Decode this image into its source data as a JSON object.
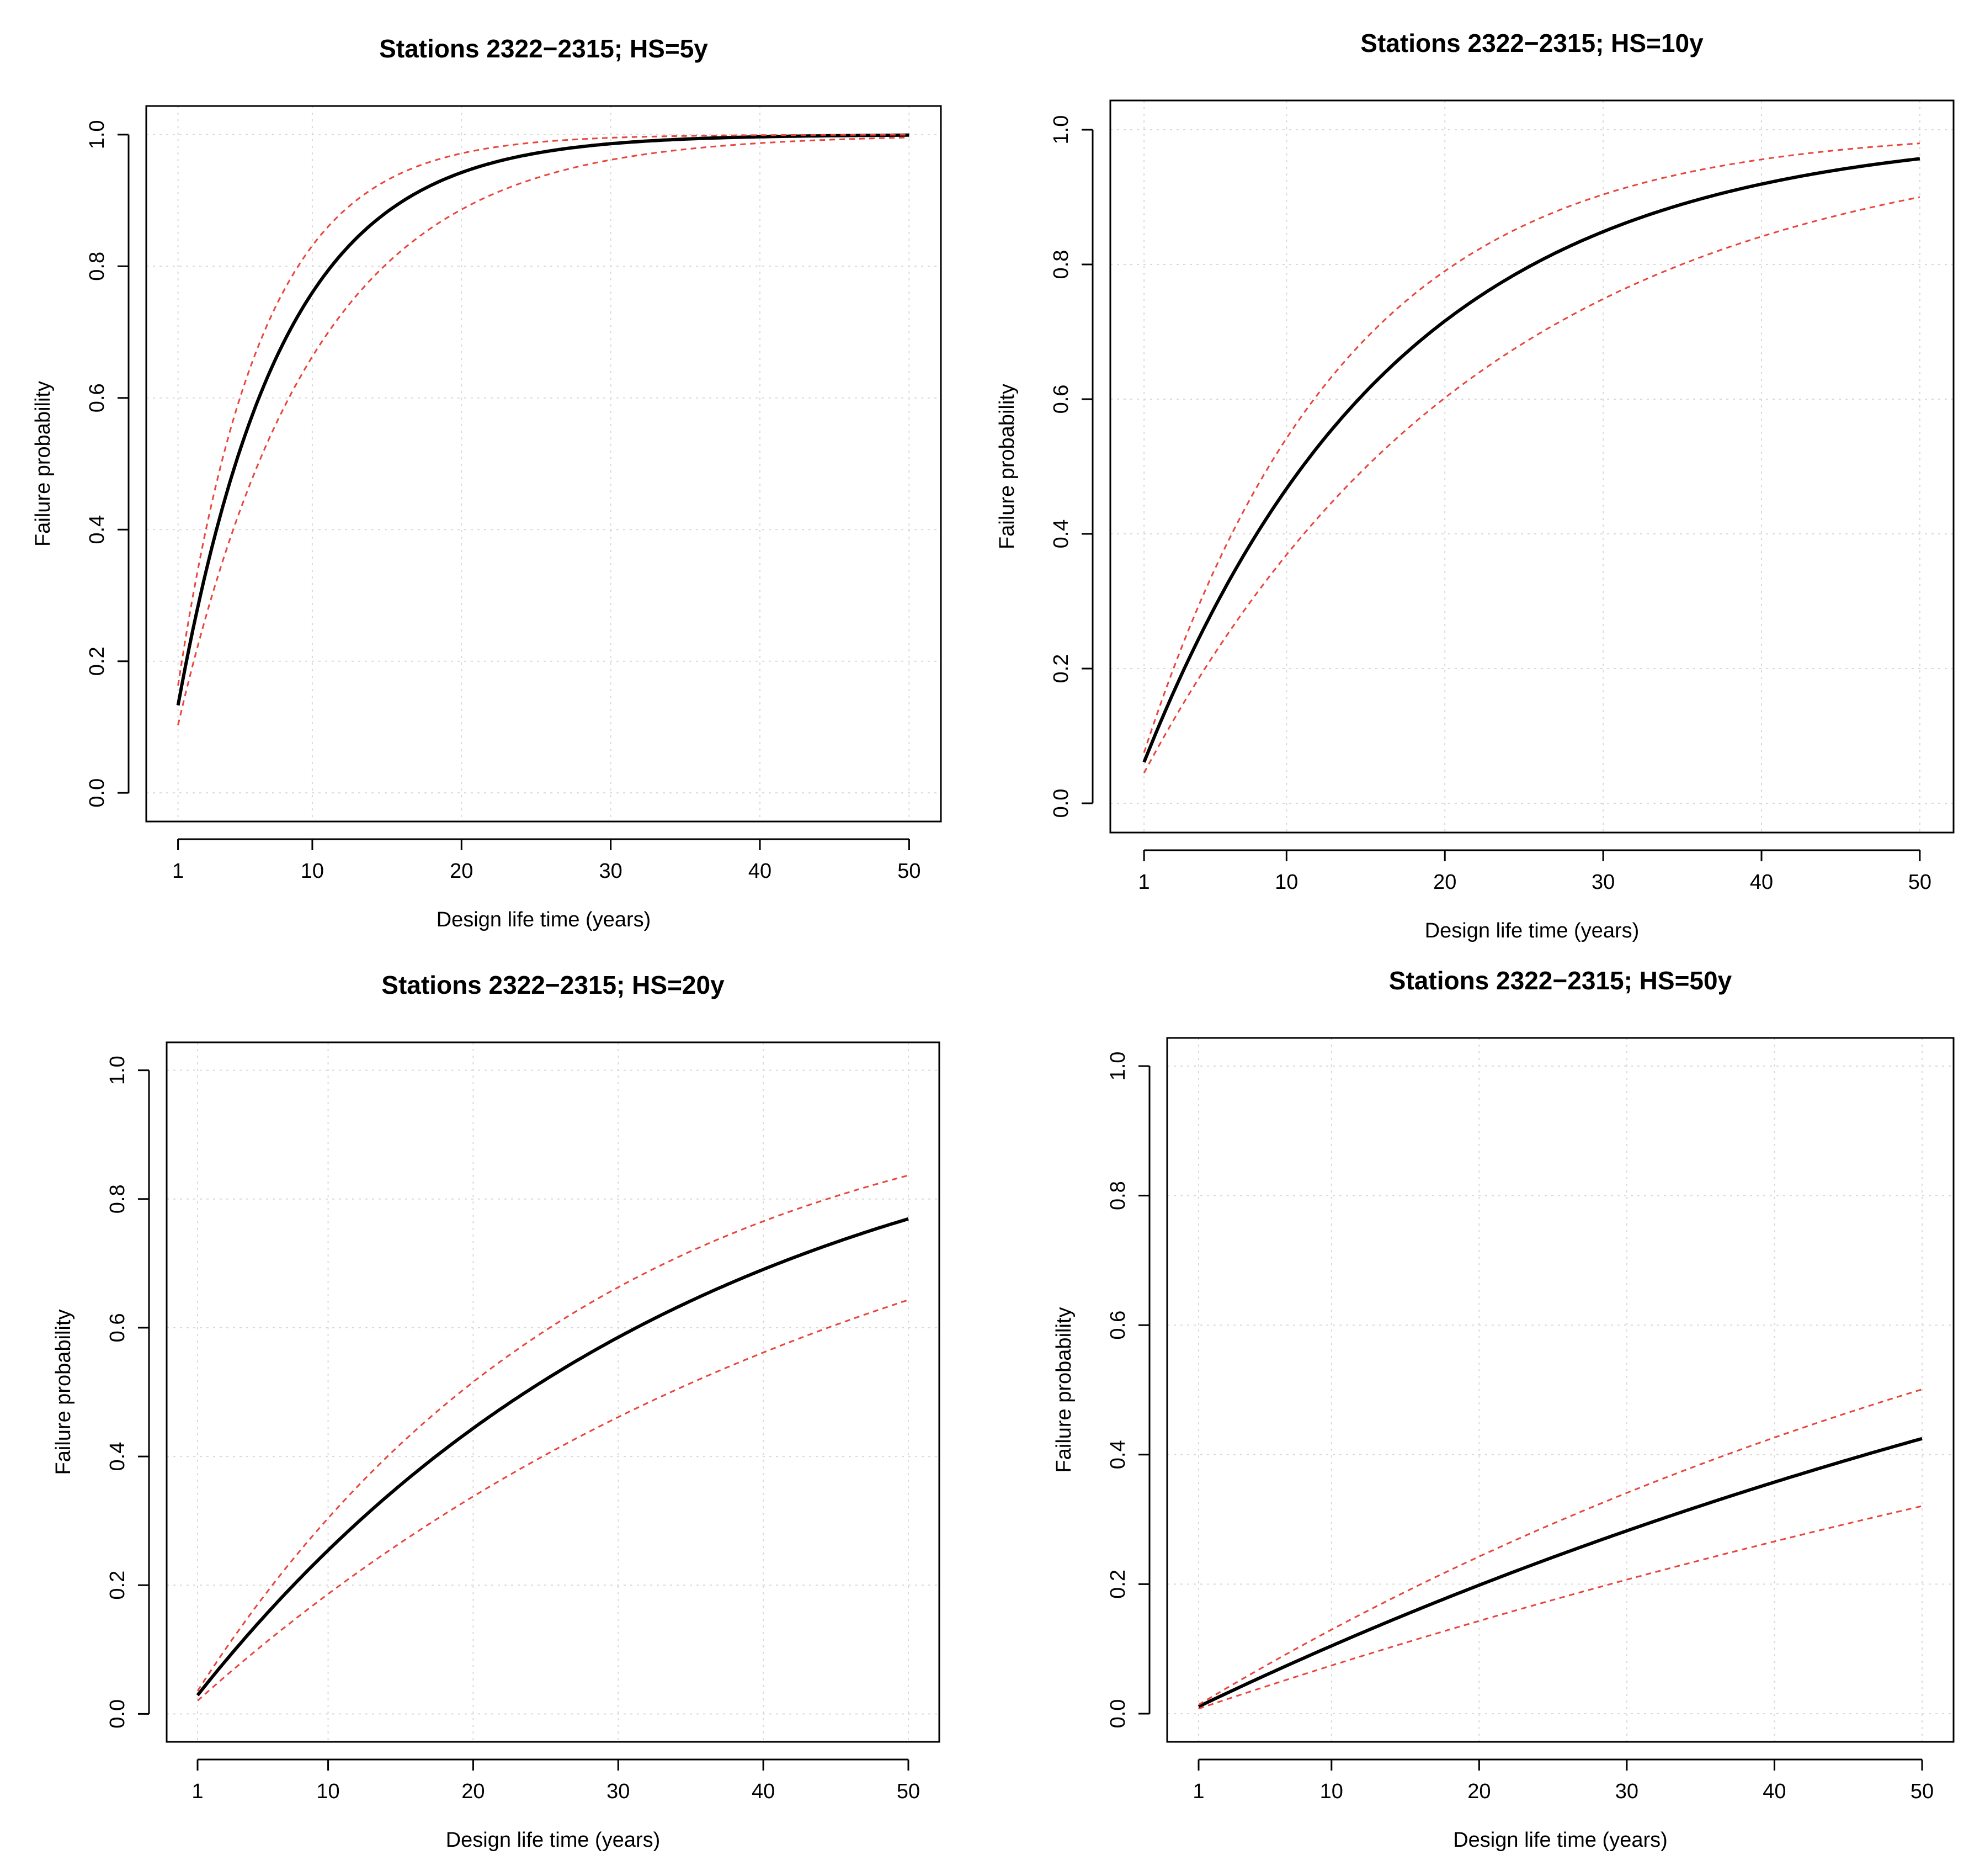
{
  "chart_data": [
    {
      "type": "line",
      "title": "Stations 2322−2315; HS=5y",
      "xlabel": "Design life time (years)",
      "ylabel": "Failure probability",
      "xlim": [
        1,
        50
      ],
      "ylim": [
        0,
        1
      ],
      "xticks": [
        1,
        10,
        20,
        30,
        40,
        50
      ],
      "xtick_labels": [
        "1",
        "10",
        "20",
        "30",
        "40",
        "50"
      ],
      "yticks": [
        0,
        0.2,
        0.4,
        0.6,
        0.8,
        1.0
      ],
      "ytick_labels": [
        "0.0",
        "0.2",
        "0.4",
        "0.6",
        "0.8",
        "1.0"
      ],
      "grid": true,
      "series": [
        {
          "name": "estimate",
          "color": "#000000",
          "style": "solid",
          "annual_probability": 0.133
        },
        {
          "name": "upper bound",
          "color": "#e8463d",
          "style": "dashed",
          "annual_probability": 0.163
        },
        {
          "name": "lower bound",
          "color": "#e8463d",
          "style": "dashed",
          "annual_probability": 0.103
        }
      ]
    },
    {
      "type": "line",
      "title": "Stations 2322−2315; HS=10y",
      "xlabel": "Design life time (years)",
      "ylabel": "Failure probability",
      "xlim": [
        1,
        50
      ],
      "ylim": [
        0,
        1
      ],
      "xticks": [
        1,
        10,
        20,
        30,
        40,
        50
      ],
      "xtick_labels": [
        "1",
        "10",
        "20",
        "30",
        "40",
        "50"
      ],
      "yticks": [
        0,
        0.2,
        0.4,
        0.6,
        0.8,
        1.0
      ],
      "ytick_labels": [
        "0.0",
        "0.2",
        "0.4",
        "0.6",
        "0.8",
        "1.0"
      ],
      "grid": true,
      "series": [
        {
          "name": "estimate",
          "color": "#000000",
          "style": "solid",
          "annual_probability": 0.061
        },
        {
          "name": "upper bound",
          "color": "#e8463d",
          "style": "dashed",
          "annual_probability": 0.0751
        },
        {
          "name": "lower bound",
          "color": "#e8463d",
          "style": "dashed",
          "annual_probability": 0.045
        }
      ]
    },
    {
      "type": "line",
      "title": "Stations 2322−2315; HS=20y",
      "xlabel": "Design life time (years)",
      "ylabel": "Failure probability",
      "xlim": [
        1,
        50
      ],
      "ylim": [
        0,
        1
      ],
      "xticks": [
        1,
        10,
        20,
        30,
        40,
        50
      ],
      "xtick_labels": [
        "1",
        "10",
        "20",
        "30",
        "40",
        "50"
      ],
      "yticks": [
        0,
        0.2,
        0.4,
        0.6,
        0.8,
        1.0
      ],
      "ytick_labels": [
        "0.0",
        "0.2",
        "0.4",
        "0.6",
        "0.8",
        "1.0"
      ],
      "grid": true,
      "series": [
        {
          "name": "estimate",
          "color": "#000000",
          "style": "solid",
          "annual_probability": 0.0289
        },
        {
          "name": "upper bound",
          "color": "#e8463d",
          "style": "dashed",
          "annual_probability": 0.0356
        },
        {
          "name": "lower bound",
          "color": "#e8463d",
          "style": "dashed",
          "annual_probability": 0.0204
        }
      ]
    },
    {
      "type": "line",
      "title": "Stations 2322−2315; HS=50y",
      "xlabel": "Design life time (years)",
      "ylabel": "Failure probability",
      "xlim": [
        1,
        50
      ],
      "ylim": [
        0,
        1
      ],
      "xticks": [
        1,
        10,
        20,
        30,
        40,
        50
      ],
      "xtick_labels": [
        "1",
        "10",
        "20",
        "30",
        "40",
        "50"
      ],
      "yticks": [
        0,
        0.2,
        0.4,
        0.6,
        0.8,
        1.0
      ],
      "ytick_labels": [
        "0.0",
        "0.2",
        "0.4",
        "0.6",
        "0.8",
        "1.0"
      ],
      "grid": true,
      "series": [
        {
          "name": "estimate",
          "color": "#000000",
          "style": "solid",
          "annual_probability": 0.011
        },
        {
          "name": "upper bound",
          "color": "#e8463d",
          "style": "dashed",
          "annual_probability": 0.0138
        },
        {
          "name": "lower bound",
          "color": "#e8463d",
          "style": "dashed",
          "annual_probability": 0.0077
        }
      ]
    }
  ]
}
